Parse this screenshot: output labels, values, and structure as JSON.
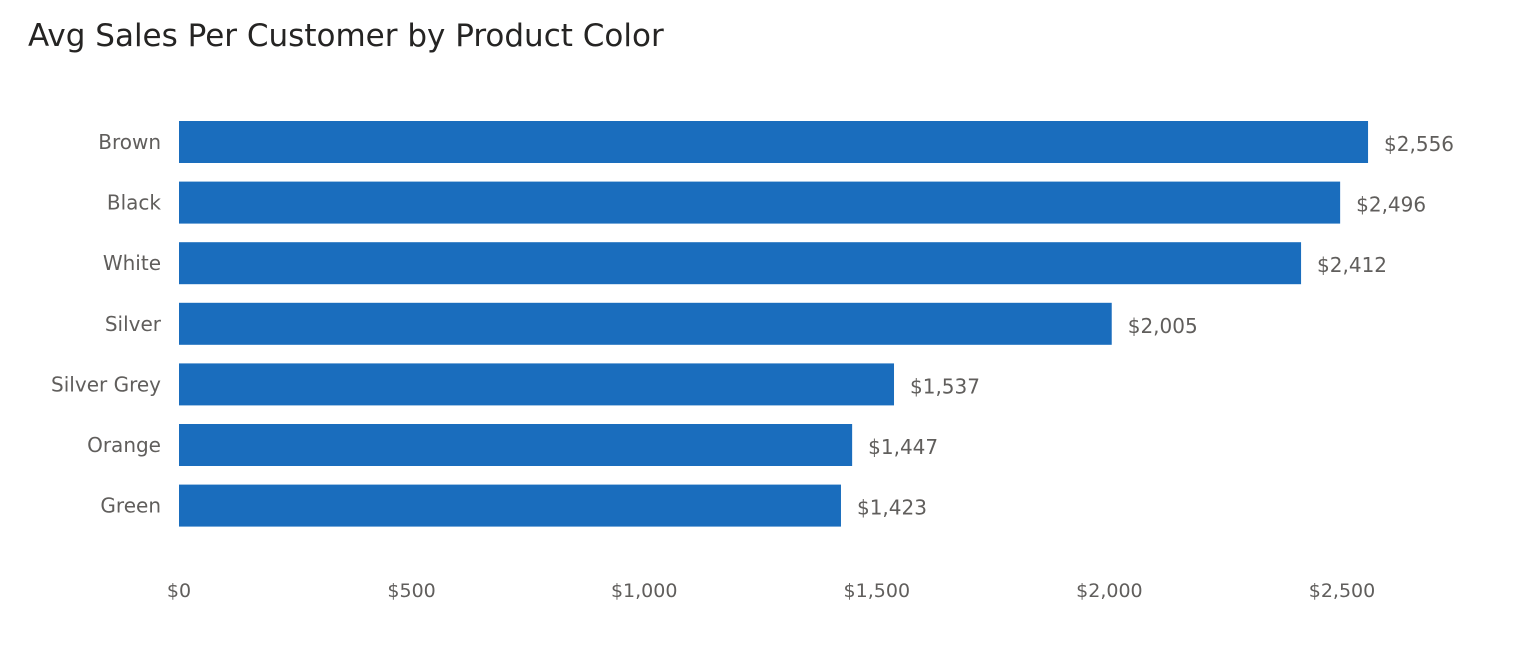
{
  "chart_data": {
    "type": "bar",
    "orientation": "horizontal",
    "title": "Avg Sales Per Customer by Product Color",
    "categories": [
      "Brown",
      "Black",
      "White",
      "Silver",
      "Silver Grey",
      "Orange",
      "Green"
    ],
    "values": [
      2556,
      2496,
      2412,
      2005,
      1537,
      1447,
      1423
    ],
    "data_labels": [
      "$2,556",
      "$2,496",
      "$2,412",
      "$2,005",
      "$1,537",
      "$1,447",
      "$1,423"
    ],
    "x_ticks": [
      0,
      500,
      1000,
      1500,
      2000,
      2500
    ],
    "x_tick_labels": [
      "$0",
      "$500",
      "$1,000",
      "$1,500",
      "$2,000",
      "$2,500"
    ],
    "xlim": [
      0,
      2600
    ],
    "xlabel": "",
    "ylabel": "",
    "grid": false,
    "legend": "none",
    "bar_color": "#1a6dbd",
    "label_color": "#605e5c",
    "title_color": "#252423"
  }
}
